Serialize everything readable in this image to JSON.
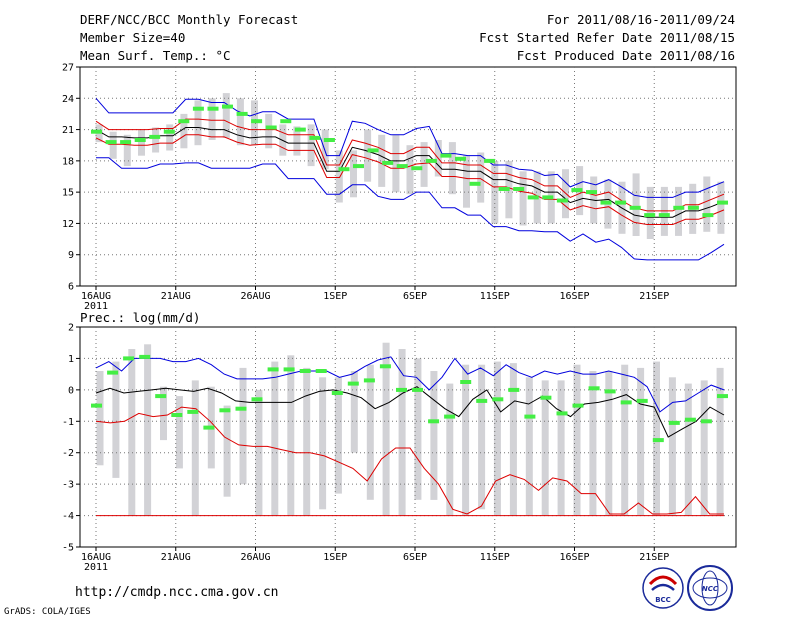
{
  "header": {
    "title": "DERF/NCC/BCC Monthly Forecast",
    "member_size": "Member Size=40",
    "period": "For 2011/08/16-2011/09/24",
    "fcst_started": "Fcst Started Refer Date 2011/08/15",
    "fcst_produced": "Fcst Produced Date 2011/08/16"
  },
  "footer": {
    "url": "http://cmdp.ncc.cma.gov.cn",
    "grads_credit": "GrADS: COLA/IGES",
    "logo_bcc": "BCC",
    "logo_ncc": "NCC"
  },
  "colors": {
    "box": "#d2d2d6",
    "ensemble_mean": "#000000",
    "spread": "#dd0000",
    "extreme": "#0000dd",
    "observed": "#44ee44",
    "grid": "#777777"
  },
  "chart_data": [
    {
      "type": "line",
      "title": "Mean Surf. Temp.: °C",
      "x_tick_labels": [
        "16AUG\n2011",
        "21AUG",
        "26AUG",
        "1SEP",
        "6SEP",
        "11SEP",
        "16SEP",
        "21SEP"
      ],
      "x_tick_days": [
        1,
        6,
        11,
        16,
        21,
        26,
        31,
        36
      ],
      "xlim": [
        1,
        40
      ],
      "ylim": [
        6,
        27
      ],
      "y_ticks": [
        6,
        9,
        12,
        15,
        18,
        21,
        24,
        27
      ],
      "grid": true,
      "series": [
        {
          "name": "max",
          "values": [
            24.0,
            22.6,
            22.6,
            22.6,
            22.6,
            22.6,
            22.6,
            23.9,
            23.9,
            23.6,
            23.6,
            22.8,
            22.3,
            22.7,
            22.7,
            22.0,
            22.0,
            22.0,
            18.5,
            18.5,
            21.8,
            21.6,
            21.0,
            20.5,
            20.5,
            21.1,
            21.3,
            18.7,
            18.7,
            18.5,
            18.5,
            17.6,
            17.6,
            17.2,
            17.1,
            16.6,
            16.7,
            15.5,
            16.0,
            15.7,
            16.2,
            15.5,
            14.7,
            14.5,
            14.5,
            14.5,
            15.0,
            15.0,
            15.5,
            16.0
          ]
        },
        {
          "name": "upper",
          "values": [
            21.8,
            21.0,
            21.0,
            21.0,
            21.0,
            21.1,
            21.1,
            22.0,
            22.0,
            21.9,
            21.9,
            21.3,
            21.0,
            21.0,
            21.0,
            20.5,
            20.5,
            20.5,
            17.6,
            17.6,
            20.0,
            19.7,
            19.3,
            18.7,
            18.7,
            19.3,
            19.3,
            17.8,
            17.8,
            17.6,
            17.6,
            16.8,
            16.8,
            16.4,
            16.2,
            15.6,
            15.6,
            14.5,
            15.0,
            14.7,
            15.0,
            14.2,
            13.5,
            13.2,
            13.2,
            13.2,
            13.8,
            13.8,
            14.3,
            14.8
          ]
        },
        {
          "name": "mean",
          "values": [
            21.0,
            20.3,
            20.3,
            20.2,
            20.2,
            20.4,
            20.4,
            21.2,
            21.2,
            21.0,
            21.0,
            20.5,
            20.2,
            20.3,
            20.3,
            19.7,
            19.7,
            19.7,
            17.0,
            17.0,
            19.3,
            19.0,
            18.6,
            18.0,
            18.0,
            18.5,
            18.5,
            17.2,
            17.2,
            17.0,
            17.0,
            16.2,
            16.2,
            15.8,
            15.6,
            15.0,
            15.0,
            14.0,
            14.4,
            14.2,
            14.3,
            13.5,
            12.8,
            12.6,
            12.6,
            12.6,
            13.2,
            13.2,
            13.6,
            14.1
          ]
        },
        {
          "name": "lower",
          "values": [
            20.2,
            19.6,
            19.6,
            19.5,
            19.5,
            19.7,
            19.7,
            20.5,
            20.5,
            20.3,
            20.3,
            19.8,
            19.5,
            19.6,
            19.6,
            19.0,
            19.0,
            19.0,
            16.4,
            16.4,
            18.6,
            18.3,
            17.9,
            17.3,
            17.3,
            17.7,
            17.8,
            16.5,
            16.5,
            16.3,
            16.3,
            15.5,
            15.5,
            15.1,
            14.9,
            14.3,
            14.3,
            13.3,
            13.7,
            13.4,
            13.6,
            12.8,
            12.1,
            11.9,
            11.9,
            11.9,
            12.4,
            12.4,
            12.8,
            13.3
          ]
        },
        {
          "name": "min",
          "values": [
            18.3,
            18.3,
            17.3,
            17.3,
            17.3,
            17.7,
            17.7,
            17.8,
            17.8,
            17.3,
            17.3,
            17.3,
            17.3,
            17.7,
            17.7,
            16.3,
            16.3,
            16.3,
            14.8,
            14.8,
            15.7,
            15.7,
            14.6,
            14.3,
            14.3,
            15.0,
            15.0,
            13.5,
            13.5,
            12.8,
            12.8,
            11.7,
            11.7,
            11.3,
            11.3,
            11.2,
            11.2,
            10.3,
            11.0,
            10.2,
            10.5,
            9.7,
            8.6,
            8.5,
            8.5,
            8.5,
            8.5,
            8.5,
            9.2,
            10.0
          ]
        }
      ],
      "observed": [
        20.8,
        19.8,
        19.8,
        20.0,
        20.3,
        20.8,
        21.8,
        23.0,
        23.0,
        23.2,
        22.5,
        21.8,
        21.2,
        21.8,
        21.0,
        20.2,
        20.0,
        17.2,
        17.5,
        19.0,
        17.8,
        17.5,
        17.3,
        18.0,
        18.5,
        18.2,
        15.8,
        18.0,
        15.3,
        15.3,
        14.5,
        14.5,
        14.2,
        15.2,
        15.0,
        14.0,
        14.0,
        13.5,
        12.8,
        12.8,
        13.5,
        13.5,
        12.8,
        14.0
      ],
      "box_top": [
        21.5,
        20.8,
        20.5,
        21.0,
        21.2,
        21.5,
        22.5,
        23.8,
        24.0,
        24.5,
        24.0,
        23.8,
        22.5,
        21.5,
        21.3,
        21.5,
        21.0,
        19.0,
        19.0,
        21.0,
        20.5,
        20.5,
        19.5,
        19.8,
        20.0,
        19.8,
        18.5,
        18.8,
        18.0,
        18.0,
        17.0,
        17.0,
        17.0,
        17.2,
        17.5,
        16.5,
        16.2,
        16.0,
        16.8,
        15.5,
        15.5,
        15.5,
        15.8,
        16.5,
        16.0
      ],
      "box_bottom": [
        19.8,
        18.2,
        17.5,
        18.5,
        18.8,
        19.0,
        19.2,
        19.5,
        20.0,
        20.2,
        19.5,
        19.5,
        19.2,
        18.5,
        18.5,
        17.5,
        17.2,
        14.0,
        14.5,
        16.0,
        15.5,
        15.0,
        14.8,
        15.5,
        16.5,
        14.8,
        13.5,
        14.0,
        12.0,
        12.5,
        11.8,
        12.0,
        12.0,
        12.5,
        12.8,
        12.0,
        11.5,
        11.0,
        10.8,
        10.5,
        10.8,
        10.8,
        11.0,
        11.2,
        11.0
      ]
    },
    {
      "type": "line",
      "title": "Prec.: log(mm/d)",
      "x_tick_labels": [
        "16AUG\n2011",
        "21AUG",
        "26AUG",
        "1SEP",
        "6SEP",
        "11SEP",
        "16SEP",
        "21SEP"
      ],
      "x_tick_days": [
        1,
        6,
        11,
        16,
        21,
        26,
        31,
        36
      ],
      "xlim": [
        1,
        40
      ],
      "ylim": [
        -5,
        2
      ],
      "y_ticks": [
        -5,
        -4,
        -3,
        -2,
        -1,
        0,
        1,
        2
      ],
      "grid": true,
      "series": [
        {
          "name": "max",
          "values": [
            0.7,
            0.9,
            0.6,
            1.0,
            1.0,
            1.0,
            0.9,
            0.9,
            1.0,
            0.8,
            0.5,
            0.35,
            0.35,
            0.35,
            0.4,
            0.5,
            0.6,
            0.6,
            0.6,
            0.4,
            0.5,
            0.75,
            0.95,
            1.05,
            0.45,
            0.4,
            0.0,
            0.4,
            1.0,
            0.5,
            0.7,
            0.45,
            0.8,
            0.55,
            0.4,
            0.6,
            0.5,
            0.6,
            0.5,
            0.5,
            0.6,
            0.5,
            0.4,
            0.1,
            -0.7,
            -0.4,
            -0.35,
            -0.1,
            0.15,
            0.0
          ]
        },
        {
          "name": "mean",
          "values": [
            -0.1,
            0.05,
            -0.1,
            -0.05,
            0.0,
            0.05,
            0.0,
            -0.05,
            0.05,
            -0.1,
            -0.35,
            -0.4,
            -0.4,
            -0.4,
            -0.4,
            -0.2,
            -0.05,
            0.0,
            -0.1,
            -0.25,
            -0.6,
            -0.4,
            -0.1,
            0.1,
            -0.25,
            -0.6,
            -0.85,
            -0.3,
            0.0,
            -0.7,
            -0.35,
            -0.45,
            -0.2,
            -0.6,
            -0.85,
            -0.45,
            -0.4,
            -0.3,
            -0.15,
            -0.45,
            -0.55,
            -1.5,
            -1.25,
            -1.0,
            -0.55,
            -0.8
          ]
        },
        {
          "name": "min",
          "values": [
            -4.0,
            -4.0,
            -4.0,
            -4.0,
            -4.0,
            -4.0,
            -4.0,
            -4.0,
            -4.0,
            -4.0,
            -4.0,
            -4.0,
            -4.0,
            -4.0,
            -4.0,
            -4.0,
            -4.0,
            -4.0,
            -4.0,
            -4.0,
            -4.0,
            -4.0,
            -4.0,
            -4.0,
            -4.0,
            -4.0,
            -4.0,
            -4.0,
            -4.0,
            -4.0,
            -4.0,
            -4.0,
            -4.0,
            -4.0,
            -4.0,
            -4.0,
            -4.0,
            -4.0,
            -4.0,
            -4.0,
            -4.0,
            -4.0,
            -4.0,
            -4.0,
            -4.0,
            -4.0
          ]
        },
        {
          "name": "lower",
          "values": [
            -1.0,
            -1.05,
            -1.0,
            -0.75,
            -0.85,
            -0.8,
            -0.55,
            -0.6,
            -1.0,
            -1.5,
            -1.75,
            -1.8,
            -1.8,
            -1.9,
            -2.0,
            -2.0,
            -2.1,
            -2.3,
            -2.5,
            -2.9,
            -2.2,
            -1.85,
            -1.85,
            -2.5,
            -3.0,
            -3.8,
            -3.95,
            -3.7,
            -2.9,
            -2.7,
            -2.85,
            -3.2,
            -2.8,
            -2.9,
            -3.3,
            -3.3,
            -3.95,
            -3.95,
            -3.6,
            -3.95,
            -3.95,
            -3.9,
            -3.4,
            -3.95,
            -3.95
          ]
        }
      ],
      "observed": [
        -0.5,
        0.55,
        1.0,
        1.05,
        -0.2,
        -0.8,
        -0.7,
        -1.2,
        -0.65,
        -0.6,
        -0.3,
        0.65,
        0.65,
        0.6,
        0.6,
        -0.1,
        0.2,
        0.3,
        0.75,
        0.0,
        0.0,
        -1.0,
        -0.85,
        0.25,
        -0.35,
        -0.3,
        0.0,
        -0.85,
        -0.25,
        -0.75,
        -0.5,
        0.05,
        -0.05,
        -0.4,
        -0.35,
        -1.6,
        -1.05,
        -0.95,
        -1.0,
        -0.2
      ],
      "box_top": [
        0.6,
        0.9,
        1.3,
        1.45,
        0.1,
        -0.2,
        0.3,
        0.1,
        -0.5,
        0.7,
        0.0,
        0.9,
        1.1,
        0.7,
        0.4,
        0.4,
        0.6,
        0.8,
        1.5,
        1.3,
        1.0,
        0.6,
        0.2,
        0.8,
        0.8,
        0.9,
        0.85,
        0.4,
        0.3,
        0.3,
        0.8,
        0.6,
        0.6,
        0.8,
        0.7,
        0.9,
        0.4,
        0.2,
        0.3,
        0.7
      ],
      "box_bottom": [
        -2.4,
        -2.8,
        -4.0,
        -4.0,
        -1.6,
        -2.5,
        -4.0,
        -2.5,
        -3.4,
        -3.0,
        -4.0,
        -4.0,
        -4.0,
        -4.0,
        -3.8,
        -3.3,
        -2.0,
        -3.5,
        -4.0,
        -4.0,
        -3.5,
        -3.5,
        -4.0,
        -4.0,
        -3.8,
        -4.0,
        -4.0,
        -4.0,
        -4.0,
        -4.0,
        -4.0,
        -4.0,
        -4.0,
        -4.0,
        -4.0,
        -4.0,
        -4.0,
        -4.0,
        -4.0,
        -4.0
      ]
    }
  ]
}
